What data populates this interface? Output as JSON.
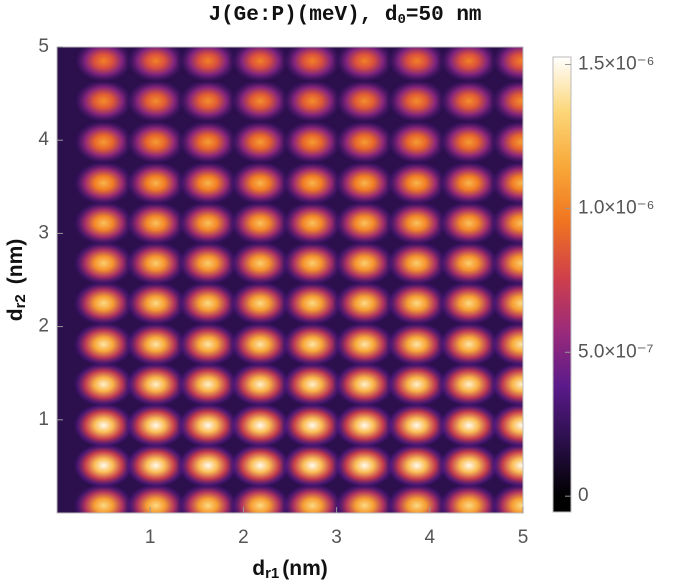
{
  "chart_data": {
    "type": "density",
    "title_parts": [
      "J(Ge:P)(meV), d",
      "0",
      "=50 nm"
    ],
    "xlabel_parts": [
      "d",
      "r1",
      "(nm)"
    ],
    "ylabel_parts": [
      "d",
      "r2",
      "(nm)"
    ],
    "xlim": [
      0,
      5
    ],
    "ylim": [
      0,
      5
    ],
    "xticks": [
      1,
      2,
      3,
      4,
      5
    ],
    "yticks": [
      1,
      2,
      3,
      4,
      5
    ],
    "x": [
      0.5,
      1.06,
      1.62,
      2.18,
      2.74,
      3.3,
      3.86,
      4.42,
      4.98
    ],
    "y": [
      0.08,
      0.51,
      0.94,
      1.38,
      1.81,
      2.25,
      2.68,
      3.11,
      3.54,
      3.98,
      4.42,
      4.85
    ],
    "values": [
      [
        1.35e-06,
        1.35e-06,
        1.35e-06,
        1.35e-06,
        1.35e-06,
        1.35e-06,
        1.35e-06,
        1.35e-06,
        1.35e-06
      ],
      [
        1.5e-06,
        1.5e-06,
        1.5e-06,
        1.5e-06,
        1.5e-06,
        1.5e-06,
        1.5e-06,
        1.5e-06,
        1.5e-06
      ],
      [
        1.5e-06,
        1.5e-06,
        1.5e-06,
        1.5e-06,
        1.5e-06,
        1.5e-06,
        1.5e-06,
        1.5e-06,
        1.5e-06
      ],
      [
        1.45e-06,
        1.45e-06,
        1.45e-06,
        1.45e-06,
        1.45e-06,
        1.45e-06,
        1.45e-06,
        1.45e-06,
        1.45e-06
      ],
      [
        1.4e-06,
        1.4e-06,
        1.4e-06,
        1.4e-06,
        1.4e-06,
        1.4e-06,
        1.4e-06,
        1.4e-06,
        1.4e-06
      ],
      [
        1.35e-06,
        1.35e-06,
        1.35e-06,
        1.35e-06,
        1.35e-06,
        1.35e-06,
        1.35e-06,
        1.35e-06,
        1.35e-06
      ],
      [
        1.3e-06,
        1.3e-06,
        1.3e-06,
        1.3e-06,
        1.3e-06,
        1.3e-06,
        1.3e-06,
        1.3e-06,
        1.3e-06
      ],
      [
        1.25e-06,
        1.25e-06,
        1.25e-06,
        1.25e-06,
        1.25e-06,
        1.25e-06,
        1.25e-06,
        1.25e-06,
        1.25e-06
      ],
      [
        1.2e-06,
        1.2e-06,
        1.2e-06,
        1.2e-06,
        1.2e-06,
        1.2e-06,
        1.2e-06,
        1.2e-06,
        1.2e-06
      ],
      [
        1.1e-06,
        1.1e-06,
        1.1e-06,
        1.1e-06,
        1.1e-06,
        1.1e-06,
        1.1e-06,
        1.1e-06,
        1.1e-06
      ],
      [
        1.05e-06,
        1.05e-06,
        1.05e-06,
        1.05e-06,
        1.05e-06,
        1.05e-06,
        1.05e-06,
        1.05e-06,
        1.05e-06
      ],
      [
        1e-06,
        1e-06,
        1e-06,
        1e-06,
        1e-06,
        1e-06,
        1e-06,
        1e-06,
        1e-06
      ]
    ],
    "clim": [
      -5.5e-08,
      1.526e-06
    ],
    "cticks": [
      0,
      {
        "value": 5e-07,
        "label": "5.0×10⁻⁷"
      },
      {
        "value": 1e-06,
        "label": "1.0×10⁻⁶"
      },
      {
        "value": 1.5e-06,
        "label": "1.5×10⁻⁶"
      }
    ],
    "colorscale": [
      "#000000",
      "#2a0f4a",
      "#5a1a8a",
      "#9a2a7a",
      "#d0404a",
      "#f07420",
      "#f8a838",
      "#fcd678",
      "#ffffff"
    ]
  }
}
